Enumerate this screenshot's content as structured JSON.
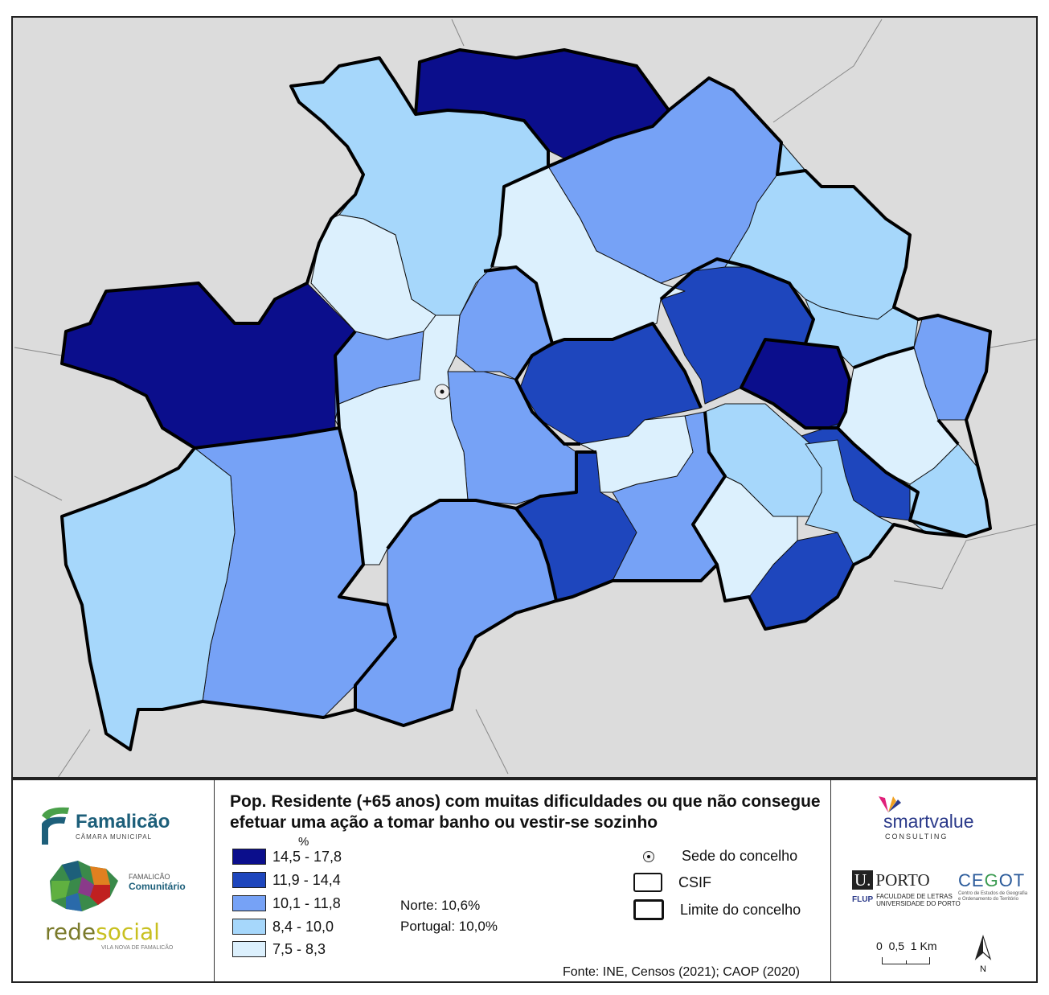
{
  "title": "Pop. Residente (+65 anos) com muitas dificuldades ou que não consegue efetuar uma ação a tomar banho ou vestir-se sozinho",
  "unit": "%",
  "legend": [
    {
      "label": "14,5 - 17,8",
      "color": "#0b0e8c"
    },
    {
      "label": "11,9 - 14,4",
      "color": "#1e46bd"
    },
    {
      "label": "10,1 - 11,8",
      "color": "#76a2f6"
    },
    {
      "label": "8,4 - 10,0",
      "color": "#a6d7fb"
    },
    {
      "label": "7,5 - 8,3",
      "color": "#dcf0fd"
    }
  ],
  "stats": {
    "norte": "Norte: 10,6%",
    "portugal": "Portugal: 10,0%"
  },
  "symbols": {
    "sede": "Sede do concelho",
    "csif": "CSIF",
    "limite": "Limite do concelho"
  },
  "source": "Fonte: INE, Censos (2021); CAOP (2020)",
  "scale": {
    "label": "0  0,5  1 Km"
  },
  "north": "N",
  "logos": {
    "famalicao": {
      "name": "Famalicão",
      "sub": "CÂMARA MUNICIPAL"
    },
    "comunitario": {
      "line1": "FAMALICÃO",
      "line2": "Comunitário"
    },
    "redesocial": {
      "name_a": "rede",
      "name_b": "social",
      "sub": "VILA NOVA DE FAMALICÃO"
    },
    "smartvalue": {
      "name_a": "smart",
      "name_b": "value",
      "sub": "CONSULTING"
    },
    "uporto": {
      "u": "U.",
      "name": "PORTO",
      "flup": "FLUP",
      "sub1": "FACULDADE DE LETRAS",
      "sub2": "UNIVERSIDADE DO PORTO"
    },
    "cegot": {
      "name_a": "CE",
      "name_b": "G",
      "name_c": "OT",
      "sub1": "Centro de Estudos de Geografia",
      "sub2": "e Ordenamento do Território"
    }
  },
  "colors": {
    "background": "#dcdcdc",
    "boundary": "#111111"
  }
}
